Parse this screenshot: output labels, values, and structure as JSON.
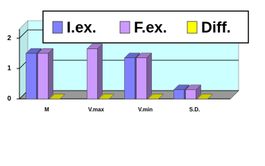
{
  "chart_data": {
    "type": "bar3d",
    "categories": [
      "M",
      "V.max",
      "V.min",
      "S.D."
    ],
    "series": [
      {
        "name": "I.ex.",
        "color": "#8080ff",
        "values": [
          1.5,
          null,
          1.35,
          0.3
        ]
      },
      {
        "name": "F.ex.",
        "color": "#cc99ff",
        "values": [
          1.5,
          1.65,
          1.35,
          0.3
        ]
      },
      {
        "name": "Diff.",
        "color": "#ffff00",
        "values": [
          0,
          0,
          0,
          0
        ]
      }
    ],
    "ylim": [
      0,
      2.3
    ],
    "yticks": [
      0,
      1,
      2
    ],
    "grid": true
  }
}
